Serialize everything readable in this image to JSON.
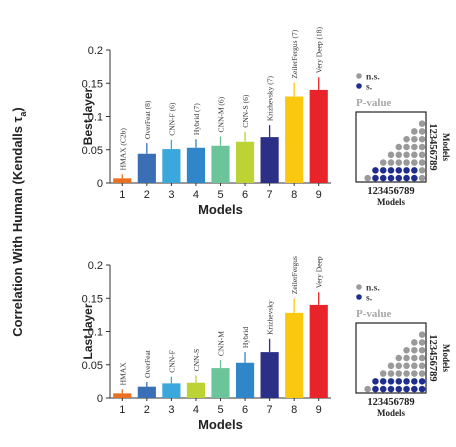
{
  "figure": {
    "ylabel": "Correlation With Human (Kendalls τ",
    "ylabel_sub": "a",
    "ylabel_close": ")"
  },
  "chart_data": [
    {
      "type": "bar",
      "panel_label": "Best layer",
      "xlabel": "Models",
      "categories": [
        "1",
        "2",
        "3",
        "4",
        "5",
        "6",
        "7",
        "8",
        "9"
      ],
      "bar_labels": [
        "HMAX (C2b)",
        "OverFeat (8)",
        "CNN-F (6)",
        "Hybrid (7)",
        "CNN-M (6)",
        "CNN-S (6)",
        "Krizhevsky (7)",
        "ZeilerFergus (7)",
        "Very Deep (18)"
      ],
      "values": [
        0.007,
        0.044,
        0.051,
        0.053,
        0.056,
        0.062,
        0.069,
        0.13,
        0.14
      ],
      "errors": [
        0.006,
        0.016,
        0.014,
        0.013,
        0.014,
        0.015,
        0.018,
        0.021,
        0.019
      ],
      "ylim": [
        0,
        0.2
      ],
      "yticks": [
        "0",
        "0.05",
        "0.1",
        "0.15",
        "0.2"
      ],
      "colors": [
        "#e8701f",
        "#3a6fb5",
        "#3aa7dd",
        "#2f86c9",
        "#6cc59a",
        "#bcd335",
        "#2b2f86",
        "#f9c80f",
        "#e8232a"
      ],
      "errorbar_colors": [
        "#e8701f",
        "#3a6fb5",
        "#3aa7dd",
        "#2f86c9",
        "#6cc59a",
        "#bcd335",
        "#2b2f86",
        "#f9c80f",
        "#e8232a"
      ],
      "grid": false,
      "inset": {
        "legend": [
          "n.s.",
          "s."
        ],
        "legend_colors": [
          "#9a9a9a",
          "#1f2e8c"
        ],
        "title": "P-value",
        "xticks": "123456789",
        "yticks": "123456789",
        "xlabel": "Models",
        "ylabel": "Models",
        "gray_cells": [
          [
            1,
            2
          ],
          [
            1,
            3
          ],
          [
            1,
            4
          ],
          [
            1,
            5
          ],
          [
            1,
            6
          ],
          [
            1,
            7
          ],
          [
            1,
            8
          ],
          [
            1,
            9
          ],
          [
            2,
            3
          ],
          [
            2,
            4
          ],
          [
            2,
            5
          ],
          [
            2,
            6
          ],
          [
            2,
            7
          ],
          [
            3,
            4
          ],
          [
            3,
            5
          ],
          [
            3,
            6
          ],
          [
            3,
            7
          ],
          [
            4,
            5
          ],
          [
            4,
            6
          ],
          [
            4,
            7
          ],
          [
            5,
            6
          ],
          [
            5,
            7
          ],
          [
            6,
            7
          ],
          [
            8,
            9
          ]
        ]
      }
    },
    {
      "type": "bar",
      "panel_label": "Last layer",
      "xlabel": "Models",
      "categories": [
        "1",
        "2",
        "3",
        "4",
        "5",
        "6",
        "7",
        "8",
        "9"
      ],
      "bar_labels": [
        "HMAX",
        "OverFeat",
        "CNN-F",
        "CNN-S",
        "CNN-M",
        "Hybrid",
        "Krizhevsky",
        "ZeilerFergus",
        "Very Deep"
      ],
      "values": [
        0.007,
        0.017,
        0.022,
        0.023,
        0.045,
        0.053,
        0.069,
        0.128,
        0.14
      ],
      "errors": [
        0.006,
        0.007,
        0.01,
        0.011,
        0.012,
        0.016,
        0.02,
        0.022,
        0.019
      ],
      "ylim": [
        0,
        0.2
      ],
      "yticks": [
        "0",
        "0.05",
        "0.1",
        "0.15",
        "0.2"
      ],
      "colors": [
        "#e8701f",
        "#3a6fb5",
        "#3aa7dd",
        "#bcd335",
        "#6cc59a",
        "#2f86c9",
        "#2b2f86",
        "#f9c80f",
        "#e8232a"
      ],
      "errorbar_colors": [
        "#e8701f",
        "#3a6fb5",
        "#3aa7dd",
        "#bcd335",
        "#6cc59a",
        "#2f86c9",
        "#2b2f86",
        "#f9c80f",
        "#e8232a"
      ],
      "grid": false,
      "inset": {
        "legend": [
          "n.s.",
          "s."
        ],
        "legend_colors": [
          "#9a9a9a",
          "#1f2e8c"
        ],
        "title": "P-value",
        "xticks": "123456789",
        "yticks": "123456789",
        "xlabel": "Models",
        "ylabel": "Models",
        "gray_cells": [
          [
            1,
            2
          ],
          [
            1,
            3
          ],
          [
            1,
            4
          ],
          [
            1,
            5
          ],
          [
            1,
            6
          ],
          [
            1,
            7
          ],
          [
            2,
            3
          ],
          [
            2,
            4
          ],
          [
            2,
            5
          ],
          [
            2,
            6
          ],
          [
            2,
            7
          ],
          [
            3,
            4
          ],
          [
            3,
            5
          ],
          [
            3,
            6
          ],
          [
            3,
            7
          ],
          [
            4,
            5
          ],
          [
            4,
            6
          ],
          [
            4,
            7
          ],
          [
            5,
            6
          ],
          [
            5,
            7
          ],
          [
            6,
            7
          ],
          [
            8,
            9
          ]
        ]
      }
    }
  ]
}
